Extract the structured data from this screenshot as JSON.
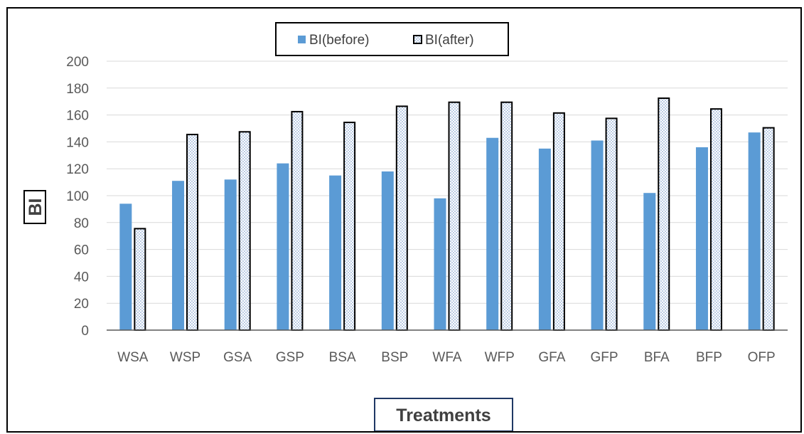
{
  "chart_data": {
    "type": "bar",
    "title": "",
    "xlabel": "Treatments",
    "ylabel": "BI",
    "ylim": [
      0,
      200
    ],
    "yticks": [
      0,
      20,
      40,
      60,
      80,
      100,
      120,
      140,
      160,
      180,
      200
    ],
    "categories": [
      "WSA",
      "WSP",
      "GSA",
      "GSP",
      "BSA",
      "BSP",
      "WFA",
      "WFP",
      "GFA",
      "GFP",
      "BFA",
      "BFP",
      "OFP"
    ],
    "series": [
      {
        "name": "BI(before)",
        "values": [
          94,
          111,
          112,
          124,
          115,
          118,
          98,
          143,
          135,
          141,
          102,
          136,
          147
        ],
        "color": "#5b9bd5",
        "fill": "solid"
      },
      {
        "name": "BI(after)",
        "values": [
          76,
          146,
          148,
          163,
          155,
          167,
          170,
          170,
          162,
          158,
          173,
          165,
          151
        ],
        "color": "#000000",
        "fill": "dotted"
      }
    ],
    "grid": true,
    "legend_position": "top"
  }
}
